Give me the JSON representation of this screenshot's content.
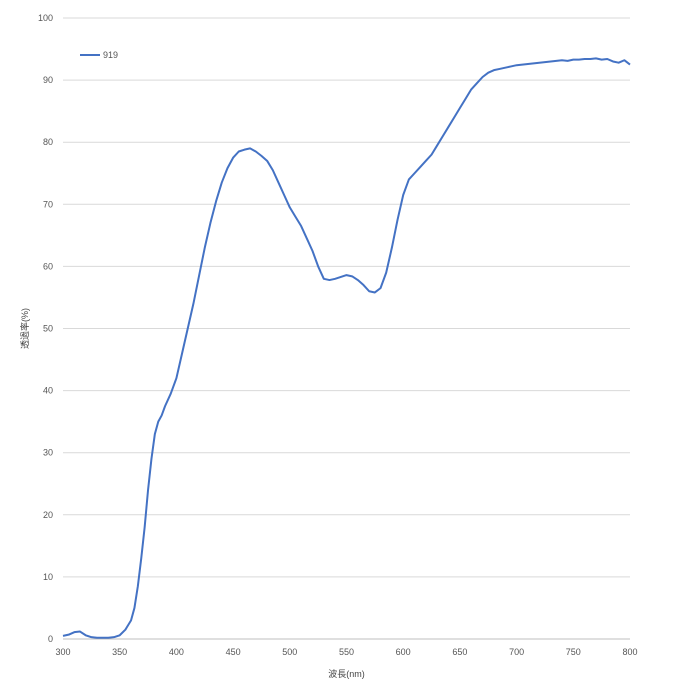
{
  "chart_data": {
    "type": "line",
    "title": "",
    "xlabel": "波長(nm)",
    "ylabel": "透過率(%)",
    "xlim": [
      300,
      800
    ],
    "ylim": [
      0,
      100
    ],
    "xticks": [
      300,
      350,
      400,
      450,
      500,
      550,
      600,
      650,
      700,
      750,
      800
    ],
    "yticks": [
      0,
      10,
      20,
      30,
      40,
      50,
      60,
      70,
      80,
      90,
      100
    ],
    "grid": "horizontal",
    "legend_position": "top-left",
    "series": [
      {
        "name": "919",
        "color": "#4472C4",
        "x": [
          300,
          305,
          310,
          315,
          320,
          325,
          330,
          335,
          340,
          345,
          350,
          355,
          360,
          363,
          366,
          369,
          372,
          375,
          378,
          381,
          384,
          387,
          390,
          395,
          400,
          405,
          410,
          415,
          420,
          425,
          430,
          435,
          440,
          445,
          450,
          455,
          460,
          465,
          470,
          475,
          480,
          485,
          490,
          495,
          500,
          505,
          510,
          515,
          520,
          525,
          530,
          535,
          540,
          545,
          550,
          555,
          560,
          565,
          570,
          575,
          580,
          585,
          590,
          595,
          600,
          605,
          610,
          615,
          620,
          625,
          630,
          635,
          640,
          645,
          650,
          655,
          660,
          665,
          670,
          675,
          680,
          685,
          690,
          695,
          700,
          705,
          710,
          715,
          720,
          725,
          730,
          735,
          740,
          745,
          750,
          755,
          760,
          765,
          770,
          775,
          780,
          785,
          790,
          795,
          800
        ],
        "values": [
          0.5,
          0.7,
          1.1,
          1.2,
          0.6,
          0.3,
          0.2,
          0.2,
          0.2,
          0.3,
          0.6,
          1.5,
          3.0,
          5.0,
          8.5,
          13.0,
          18.0,
          24.0,
          29.0,
          33.0,
          35.0,
          36.0,
          37.5,
          39.5,
          42.0,
          46.0,
          50.0,
          54.0,
          58.5,
          63.0,
          67.0,
          70.5,
          73.5,
          75.8,
          77.5,
          78.5,
          78.8,
          79.0,
          78.5,
          77.8,
          77.0,
          75.5,
          73.5,
          71.5,
          69.5,
          68.0,
          66.5,
          64.5,
          62.5,
          60.0,
          58.0,
          57.8,
          58.0,
          58.3,
          58.6,
          58.4,
          57.8,
          57.0,
          56.0,
          55.8,
          56.5,
          59.0,
          63.0,
          67.5,
          71.5,
          74.0,
          75.0,
          76.0,
          77.0,
          78.0,
          79.5,
          81.0,
          82.5,
          84.0,
          85.5,
          87.0,
          88.5,
          89.5,
          90.5,
          91.2,
          91.6,
          91.8,
          92.0,
          92.2,
          92.4,
          92.5,
          92.6,
          92.7,
          92.8,
          92.9,
          93.0,
          93.1,
          93.2,
          93.1,
          93.3,
          93.3,
          93.4,
          93.4,
          93.5,
          93.3,
          93.4,
          93.0,
          92.8,
          93.2,
          92.5
        ]
      }
    ]
  }
}
